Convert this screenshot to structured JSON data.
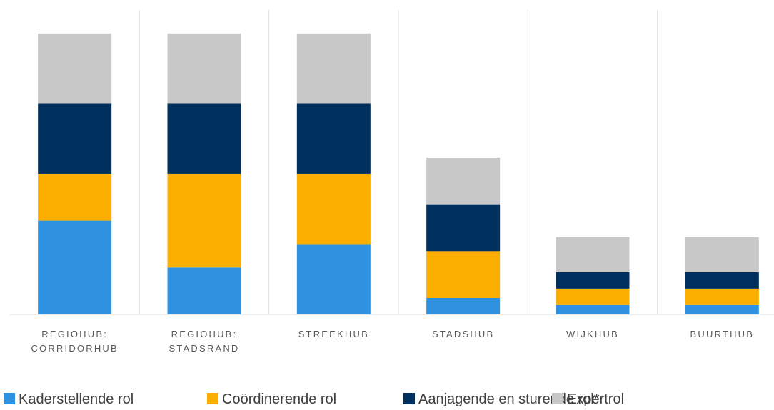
{
  "chart_data": {
    "type": "stacked_bar",
    "categories": [
      [
        "REGIOHUB:",
        "CORRIDORHUB"
      ],
      [
        "REGIOHUB:",
        "STADSRAND"
      ],
      [
        "STREEKHUB"
      ],
      [
        "STADSHUB"
      ],
      [
        "WIJKHUB"
      ],
      [
        "BUURTHUB"
      ]
    ],
    "series": [
      {
        "name": "Kaderstellende rol",
        "color": "#2e92e0",
        "values": [
          4,
          2,
          3,
          0.7,
          0.4,
          0.4
        ]
      },
      {
        "name": "Coördinerende rol",
        "color": "#f9ae00",
        "values": [
          2,
          4,
          3,
          2,
          0.7,
          0.7
        ]
      },
      {
        "name": "Aanjagende en sturende rol*",
        "color": "#00305e",
        "values": [
          3,
          3,
          3,
          2,
          0.7,
          0.7
        ]
      },
      {
        "name": "Expertrol",
        "color": "#c8c8c8",
        "values": [
          3,
          3,
          3,
          2,
          1.5,
          1.5
        ]
      }
    ],
    "ylim": [
      0,
      13
    ],
    "legend": "bottom"
  }
}
